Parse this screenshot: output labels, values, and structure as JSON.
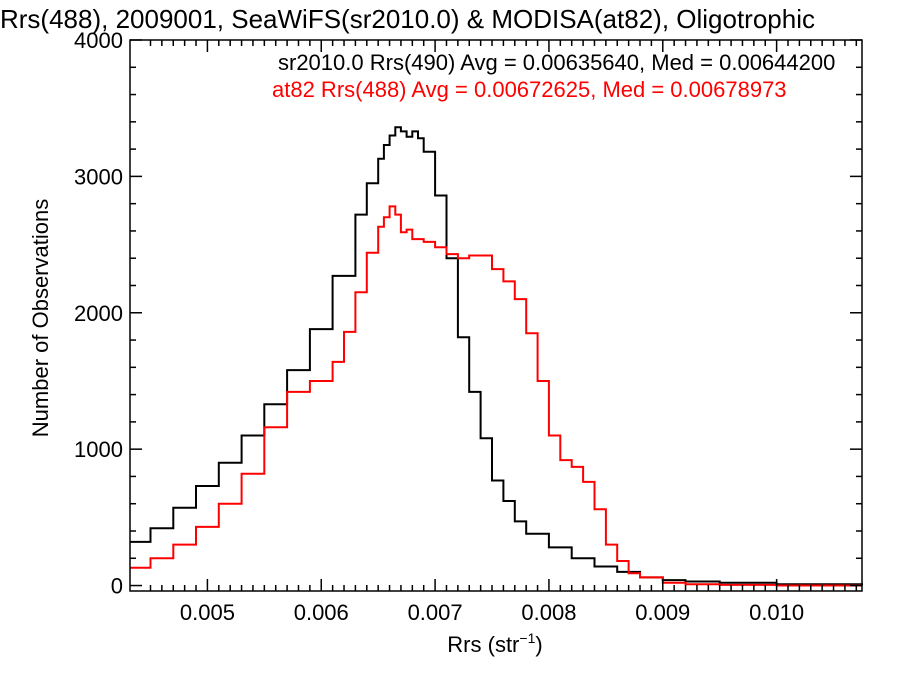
{
  "chart_data": {
    "type": "line",
    "title": "Rrs(488), 2009001, SeaWiFS(sr2010.0) & MODISA(at82), Oligotrophic",
    "xlabel": "Rrs (str",
    "xlabel_superscript": "−1",
    "xlabel_suffix": ")",
    "ylabel": "Number of Observations",
    "xlim": [
      0.00432,
      0.01075
    ],
    "ylim": [
      -40,
      4000
    ],
    "x_ticks": [
      0.005,
      0.006,
      0.007,
      0.008,
      0.009,
      0.01
    ],
    "x_tick_labels": [
      "0.005",
      "0.006",
      "0.007",
      "0.008",
      "0.009",
      "0.010"
    ],
    "y_ticks": [
      0,
      1000,
      2000,
      3000,
      4000
    ],
    "y_tick_labels": [
      "0",
      "1000",
      "2000",
      "3000",
      "4000"
    ],
    "grid": false,
    "legend_position": "top-right",
    "series": [
      {
        "name": "sr2010.0 Rrs(490) Avg = 0.00635640, Med = 0.00644200",
        "color": "#000000",
        "x": [
          0.00432,
          0.0045,
          0.0047,
          0.0049,
          0.0051,
          0.0053,
          0.0055,
          0.0057,
          0.0059,
          0.0061,
          0.0063,
          0.0064,
          0.0065,
          0.00655,
          0.0066,
          0.00665,
          0.0067,
          0.00675,
          0.0068,
          0.00685,
          0.0069,
          0.007,
          0.0071,
          0.0072,
          0.0073,
          0.0074,
          0.0075,
          0.0076,
          0.0077,
          0.0078,
          0.008,
          0.0082,
          0.0084,
          0.0086,
          0.0088,
          0.009,
          0.0092,
          0.0095,
          0.01,
          0.01075
        ],
        "y": [
          320,
          420,
          570,
          730,
          900,
          1100,
          1330,
          1580,
          1880,
          2270,
          2720,
          2950,
          3130,
          3230,
          3300,
          3360,
          3330,
          3290,
          3330,
          3280,
          3180,
          2860,
          2400,
          1820,
          1420,
          1080,
          770,
          620,
          470,
          380,
          280,
          200,
          140,
          100,
          60,
          40,
          30,
          20,
          10,
          0
        ]
      },
      {
        "name": "at82 Rrs(488) Avg = 0.00672625, Med = 0.00678973",
        "color": "#ff0000",
        "x": [
          0.00432,
          0.0045,
          0.0047,
          0.0049,
          0.0051,
          0.0053,
          0.0055,
          0.0057,
          0.0059,
          0.0061,
          0.0062,
          0.0063,
          0.0064,
          0.0065,
          0.00655,
          0.0066,
          0.00665,
          0.0067,
          0.00675,
          0.0068,
          0.0069,
          0.007,
          0.0071,
          0.0072,
          0.0073,
          0.0074,
          0.0075,
          0.0076,
          0.0077,
          0.0078,
          0.0079,
          0.008,
          0.0081,
          0.0082,
          0.0083,
          0.0084,
          0.0085,
          0.0086,
          0.0087,
          0.0088,
          0.009,
          0.0092,
          0.0095,
          0.01,
          0.01075
        ],
        "y": [
          130,
          200,
          300,
          430,
          600,
          820,
          1160,
          1420,
          1500,
          1640,
          1860,
          2150,
          2440,
          2630,
          2700,
          2780,
          2720,
          2590,
          2610,
          2540,
          2520,
          2480,
          2430,
          2400,
          2420,
          2420,
          2320,
          2230,
          2100,
          1850,
          1500,
          1100,
          920,
          870,
          760,
          560,
          300,
          180,
          90,
          60,
          20,
          10,
          5,
          0,
          0
        ]
      }
    ]
  }
}
